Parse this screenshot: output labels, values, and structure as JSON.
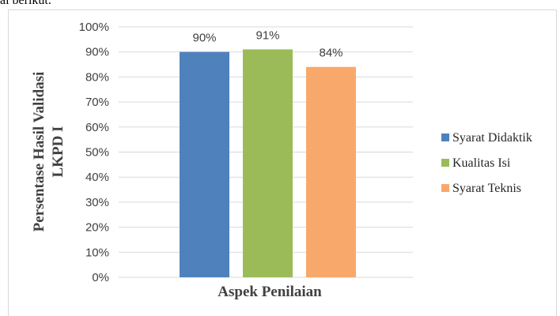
{
  "page": {
    "top_text": "ai berikut."
  },
  "chart_data": {
    "type": "bar",
    "title": "",
    "xlabel": "Aspek Penilaian",
    "ylabel": [
      "Persentase Hasil Validasi",
      "LKPD I"
    ],
    "ylim": [
      0,
      100
    ],
    "yticks": [
      "0%",
      "10%",
      "20%",
      "30%",
      "40%",
      "50%",
      "60%",
      "70%",
      "80%",
      "90%",
      "100%"
    ],
    "grid": true,
    "legend_position": "right",
    "series": [
      {
        "name": "Syarat Didaktik",
        "value": 90,
        "label": "90%",
        "color": "#4f81bd"
      },
      {
        "name": "Kualitas Isi",
        "value": 91,
        "label": "91%",
        "color": "#9bbb59"
      },
      {
        "name": "Syarat Teknis",
        "value": 84,
        "label": "84%",
        "color": "#f9a86b"
      }
    ]
  }
}
